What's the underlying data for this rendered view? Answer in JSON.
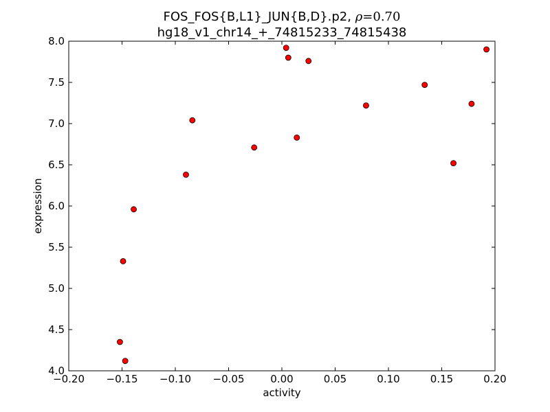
{
  "chart_data": {
    "type": "scatter",
    "title_line1": "FOS_FOS{B,L1}_JUN{B,D}.p2, ",
    "title_rho_symbol": "ρ",
    "title_rho_value": "=0.70",
    "title_line2": "hg18_v1_chr14_+_74815233_74815438",
    "xlabel": "activity",
    "ylabel": "expression",
    "xlim": [
      -0.2,
      0.2
    ],
    "ylim": [
      4.0,
      8.0
    ],
    "x_ticks": [
      -0.2,
      -0.15,
      -0.1,
      -0.05,
      0.0,
      0.05,
      0.1,
      0.15,
      0.2
    ],
    "x_tick_labels": [
      "−0.20",
      "−0.15",
      "−0.10",
      "−0.05",
      "0.00",
      "0.05",
      "0.10",
      "0.15",
      "0.20"
    ],
    "y_ticks": [
      4.0,
      4.5,
      5.0,
      5.5,
      6.0,
      6.5,
      7.0,
      7.5,
      8.0
    ],
    "y_tick_labels": [
      "4.0",
      "4.5",
      "5.0",
      "5.5",
      "6.0",
      "6.5",
      "7.0",
      "7.5",
      "8.0"
    ],
    "grid": false,
    "marker_color": "#ff0000",
    "points": [
      {
        "x": -0.152,
        "y": 4.35
      },
      {
        "x": -0.147,
        "y": 4.12
      },
      {
        "x": -0.149,
        "y": 5.33
      },
      {
        "x": -0.139,
        "y": 5.96
      },
      {
        "x": -0.09,
        "y": 6.38
      },
      {
        "x": -0.084,
        "y": 7.04
      },
      {
        "x": -0.026,
        "y": 6.71
      },
      {
        "x": 0.004,
        "y": 7.92
      },
      {
        "x": 0.006,
        "y": 7.8
      },
      {
        "x": 0.014,
        "y": 6.83
      },
      {
        "x": 0.025,
        "y": 7.76
      },
      {
        "x": 0.079,
        "y": 7.22
      },
      {
        "x": 0.134,
        "y": 7.47
      },
      {
        "x": 0.161,
        "y": 6.52
      },
      {
        "x": 0.178,
        "y": 7.24
      },
      {
        "x": 0.192,
        "y": 7.9
      }
    ]
  }
}
